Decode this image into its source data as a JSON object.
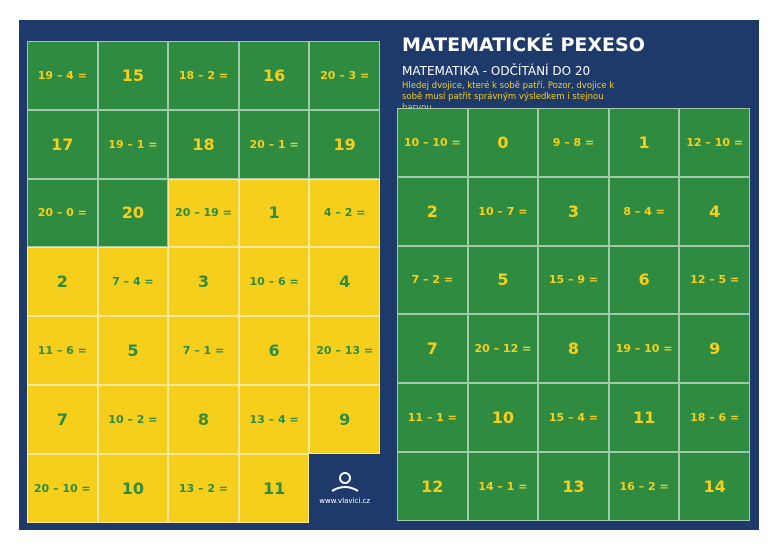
{
  "header": {
    "title": "MATEMATICKÉ PEXESO",
    "subtitle": "MATEMATIKA - ODČÍTÁNÍ DO 20",
    "instructions": "Hledej dvojice, které k sobě patří. Pozor, dvojice k sobě musí patřit správným výsledkem i stejnou barvou."
  },
  "palette": {
    "green": "#2e8b40",
    "yellow": "#f5cf1c"
  },
  "left_grid": {
    "cells": [
      {
        "text": "19 – 4 =",
        "color": "green"
      },
      {
        "text": "15",
        "color": "green"
      },
      {
        "text": "18 – 2 =",
        "color": "green"
      },
      {
        "text": "16",
        "color": "green"
      },
      {
        "text": "20 – 3 =",
        "color": "green"
      },
      {
        "text": "17",
        "color": "green"
      },
      {
        "text": "19 – 1 =",
        "color": "green"
      },
      {
        "text": "18",
        "color": "green"
      },
      {
        "text": "20 – 1 =",
        "color": "green"
      },
      {
        "text": "19",
        "color": "green"
      },
      {
        "text": "20 – 0 =",
        "color": "green"
      },
      {
        "text": "20",
        "color": "green"
      },
      {
        "text": "20 – 19 =",
        "color": "yellow"
      },
      {
        "text": "1",
        "color": "yellow"
      },
      {
        "text": "4 – 2 =",
        "color": "yellow"
      },
      {
        "text": "2",
        "color": "yellow"
      },
      {
        "text": "7 – 4 =",
        "color": "yellow"
      },
      {
        "text": "3",
        "color": "yellow"
      },
      {
        "text": "10 – 6 =",
        "color": "yellow"
      },
      {
        "text": "4",
        "color": "yellow"
      },
      {
        "text": "11 – 6 =",
        "color": "yellow"
      },
      {
        "text": "5",
        "color": "yellow"
      },
      {
        "text": "7 – 1 =",
        "color": "yellow"
      },
      {
        "text": "6",
        "color": "yellow"
      },
      {
        "text": "20 – 13 =",
        "color": "yellow"
      },
      {
        "text": "7",
        "color": "yellow"
      },
      {
        "text": "10 – 2 =",
        "color": "yellow"
      },
      {
        "text": "8",
        "color": "yellow"
      },
      {
        "text": "13 – 4 =",
        "color": "yellow"
      },
      {
        "text": "9",
        "color": "yellow"
      },
      {
        "text": "20 – 10 =",
        "color": "yellow"
      },
      {
        "text": "10",
        "color": "yellow"
      },
      {
        "text": "13 – 2 =",
        "color": "yellow"
      },
      {
        "text": "11",
        "color": "yellow"
      }
    ]
  },
  "logo": {
    "url": "www.vlavici.cz"
  },
  "right_grid": {
    "cells": [
      {
        "text": "10 – 10 =",
        "color": "green"
      },
      {
        "text": "0",
        "color": "green"
      },
      {
        "text": "9 – 8 =",
        "color": "green"
      },
      {
        "text": "1",
        "color": "green"
      },
      {
        "text": "12 – 10 =",
        "color": "green"
      },
      {
        "text": "2",
        "color": "green"
      },
      {
        "text": "10 – 7 =",
        "color": "green"
      },
      {
        "text": "3",
        "color": "green"
      },
      {
        "text": "8 – 4 =",
        "color": "green"
      },
      {
        "text": "4",
        "color": "green"
      },
      {
        "text": "7 – 2 =",
        "color": "green"
      },
      {
        "text": "5",
        "color": "green"
      },
      {
        "text": "15 – 9 =",
        "color": "green"
      },
      {
        "text": "6",
        "color": "green"
      },
      {
        "text": "12 – 5 =",
        "color": "green"
      },
      {
        "text": "7",
        "color": "green"
      },
      {
        "text": "20 – 12 =",
        "color": "green"
      },
      {
        "text": "8",
        "color": "green"
      },
      {
        "text": "19 – 10 =",
        "color": "green"
      },
      {
        "text": "9",
        "color": "green"
      },
      {
        "text": "11 – 1 =",
        "color": "green"
      },
      {
        "text": "10",
        "color": "green"
      },
      {
        "text": "15 – 4 =",
        "color": "green"
      },
      {
        "text": "11",
        "color": "green"
      },
      {
        "text": "18 – 6 =",
        "color": "green"
      },
      {
        "text": "12",
        "color": "green"
      },
      {
        "text": "14 – 1 =",
        "color": "green"
      },
      {
        "text": "13",
        "color": "green"
      },
      {
        "text": "16 – 2 =",
        "color": "green"
      },
      {
        "text": "14",
        "color": "green"
      }
    ]
  }
}
